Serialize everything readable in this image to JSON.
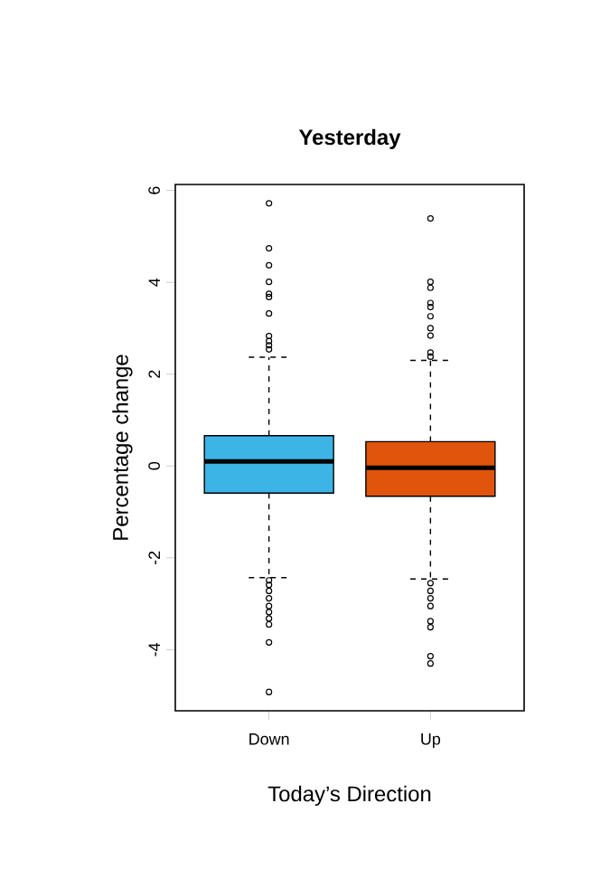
{
  "chart_data": {
    "type": "box",
    "title": "Yesterday",
    "xlabel": "Today’s Direction",
    "ylabel": "Percentage change",
    "categories": [
      "Down",
      "Up"
    ],
    "colors": [
      "#3cb4e5",
      "#e0540c"
    ],
    "boxes": [
      {
        "low": -2.43,
        "q1": -0.59,
        "median": 0.1,
        "q3": 0.66,
        "high": 2.37,
        "outliers": [
          5.72,
          4.74,
          4.37,
          4.01,
          3.75,
          3.68,
          3.32,
          2.83,
          2.72,
          2.63,
          2.54,
          -2.49,
          -2.59,
          -2.72,
          -2.88,
          -3.05,
          -3.18,
          -3.32,
          -3.45,
          -3.84,
          -4.92
        ]
      },
      {
        "low": -2.46,
        "q1": -0.66,
        "median": -0.04,
        "q3": 0.53,
        "high": 2.3,
        "outliers": [
          5.39,
          4.01,
          3.88,
          3.55,
          3.46,
          3.26,
          3.0,
          2.84,
          2.47,
          2.38,
          -2.55,
          -2.72,
          -2.88,
          -3.05,
          -3.38,
          -3.51,
          -4.14,
          -4.3
        ]
      }
    ],
    "marker": "circle",
    "ylim": [
      -5.33,
      6.13
    ],
    "yticks": [
      -4,
      -2,
      0,
      2,
      4,
      6
    ]
  }
}
